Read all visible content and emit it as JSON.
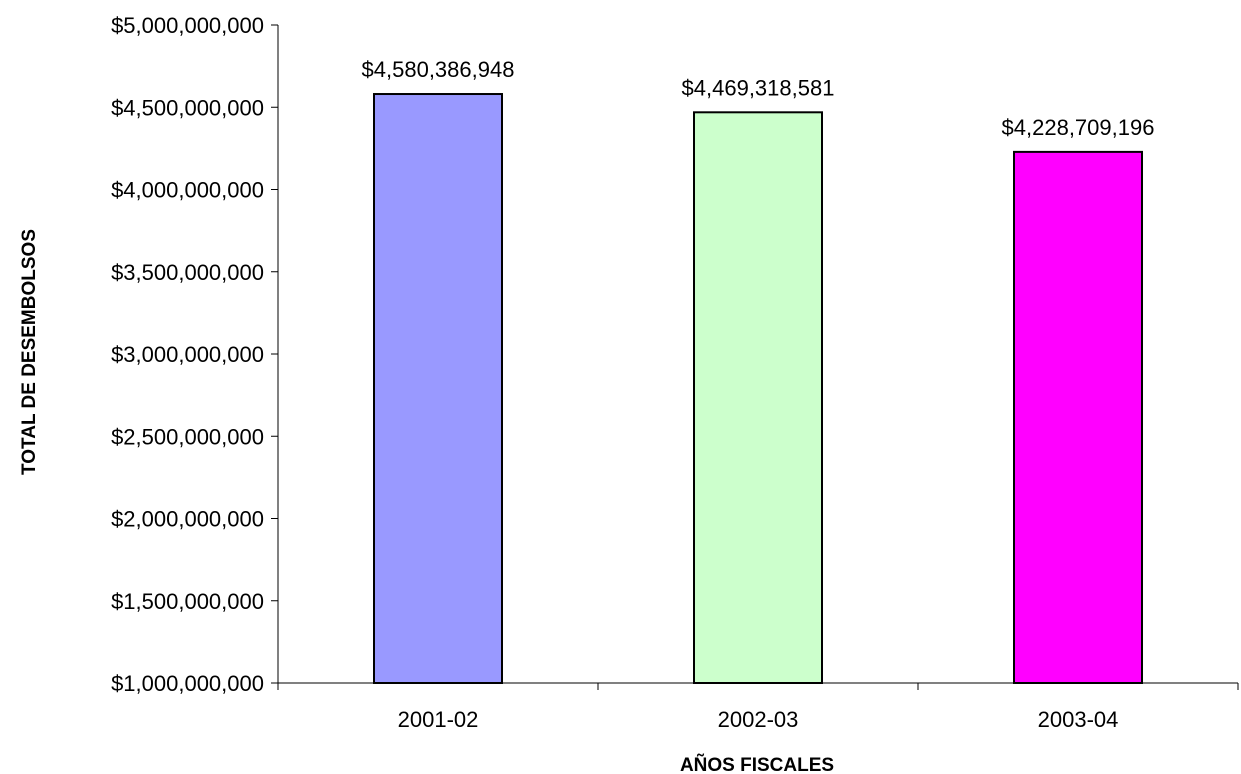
{
  "chart_data": {
    "type": "bar",
    "categories": [
      "2001-02",
      "2002-03",
      "2003-04"
    ],
    "values": [
      4580386948,
      4469318581,
      4228709196
    ],
    "data_labels": [
      "$4,580,386,948",
      "$4,469,318,581",
      "$4,228,709,196"
    ],
    "bar_colors": [
      "#9999ff",
      "#ccffcc",
      "#ff00ff"
    ],
    "title": "",
    "xlabel": "AÑOS FISCALES",
    "ylabel": "TOTAL DE DESEMBOLSOS",
    "ylim": [
      1000000000,
      5000000000
    ],
    "ytick_values": [
      1000000000,
      1500000000,
      2000000000,
      2500000000,
      3000000000,
      3500000000,
      4000000000,
      4500000000,
      5000000000
    ],
    "ytick_labels": [
      "$1,000,000,000",
      "$1,500,000,000",
      "$2,000,000,000",
      "$2,500,000,000",
      "$3,000,000,000",
      "$3,500,000,000",
      "$4,000,000,000",
      "$4,500,000,000",
      "$5,000,000,000"
    ],
    "grid": false,
    "legend": false
  }
}
